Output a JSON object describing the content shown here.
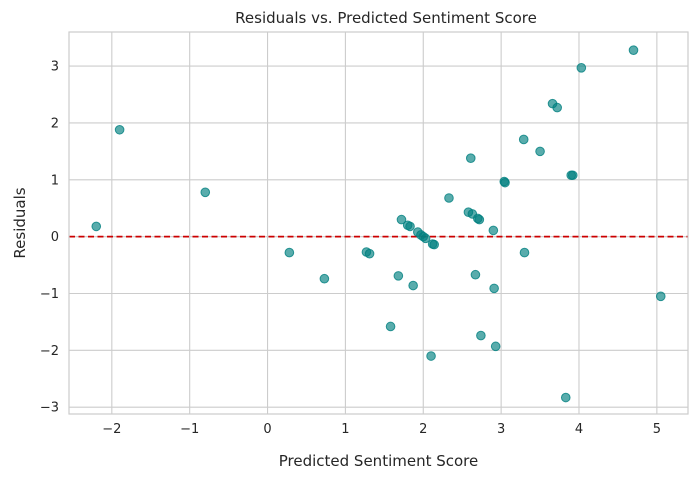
{
  "chart_data": {
    "type": "scatter",
    "title": "Residuals vs. Predicted Sentiment Score",
    "xlabel": "Predicted Sentiment Score",
    "ylabel": "Residuals",
    "xlim": [
      -2.55,
      5.4
    ],
    "ylim": [
      -3.12,
      3.6
    ],
    "xticks": [
      -2,
      -1,
      0,
      1,
      2,
      3,
      4,
      5
    ],
    "yticks": [
      -3,
      -2,
      -1,
      0,
      1,
      2,
      3
    ],
    "xtick_labels": [
      "−2",
      "−1",
      "0",
      "1",
      "2",
      "3",
      "4",
      "5"
    ],
    "ytick_labels": [
      "−3",
      "−2",
      "−1",
      "0",
      "1",
      "2",
      "3"
    ],
    "grid": true,
    "reference_line": {
      "y": 0,
      "style": "dashed",
      "color": "#cc0000"
    },
    "point_color": "#008080",
    "points": [
      {
        "x": -2.2,
        "y": 0.18
      },
      {
        "x": -1.9,
        "y": 1.88
      },
      {
        "x": -0.8,
        "y": 0.78
      },
      {
        "x": 0.28,
        "y": -0.28
      },
      {
        "x": 0.73,
        "y": -0.74
      },
      {
        "x": 1.27,
        "y": -0.27
      },
      {
        "x": 1.31,
        "y": -0.3
      },
      {
        "x": 1.58,
        "y": -1.58
      },
      {
        "x": 1.68,
        "y": -0.69
      },
      {
        "x": 1.72,
        "y": 0.3
      },
      {
        "x": 1.8,
        "y": 0.2
      },
      {
        "x": 1.83,
        "y": 0.18
      },
      {
        "x": 1.87,
        "y": -0.86
      },
      {
        "x": 1.93,
        "y": 0.08
      },
      {
        "x": 1.97,
        "y": 0.03
      },
      {
        "x": 2.0,
        "y": 0.0
      },
      {
        "x": 2.03,
        "y": -0.03
      },
      {
        "x": 2.1,
        "y": -2.1
      },
      {
        "x": 2.12,
        "y": -0.13
      },
      {
        "x": 2.14,
        "y": -0.14
      },
      {
        "x": 2.33,
        "y": 0.68
      },
      {
        "x": 2.58,
        "y": 0.43
      },
      {
        "x": 2.61,
        "y": 1.38
      },
      {
        "x": 2.63,
        "y": 0.4
      },
      {
        "x": 2.67,
        "y": -0.67
      },
      {
        "x": 2.7,
        "y": 0.32
      },
      {
        "x": 2.72,
        "y": 0.3
      },
      {
        "x": 2.74,
        "y": -1.74
      },
      {
        "x": 2.9,
        "y": 0.11
      },
      {
        "x": 2.91,
        "y": -0.91
      },
      {
        "x": 2.93,
        "y": -1.93
      },
      {
        "x": 3.04,
        "y": 0.97
      },
      {
        "x": 3.05,
        "y": 0.95
      },
      {
        "x": 3.29,
        "y": 1.71
      },
      {
        "x": 3.3,
        "y": -0.28
      },
      {
        "x": 3.5,
        "y": 1.5
      },
      {
        "x": 3.66,
        "y": 2.34
      },
      {
        "x": 3.72,
        "y": 2.27
      },
      {
        "x": 3.83,
        "y": -2.83
      },
      {
        "x": 3.9,
        "y": 1.08
      },
      {
        "x": 3.92,
        "y": 1.08
      },
      {
        "x": 4.03,
        "y": 2.97
      },
      {
        "x": 4.7,
        "y": 3.28
      },
      {
        "x": 5.05,
        "y": -1.05
      }
    ]
  }
}
